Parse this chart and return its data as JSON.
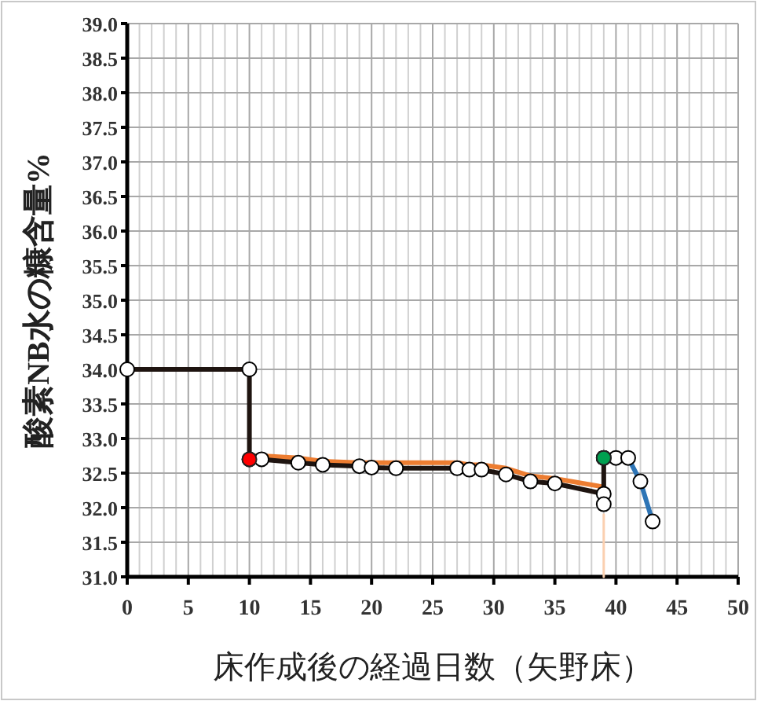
{
  "chart_data": {
    "type": "line",
    "xlabel": "床作成後の経過日数（矢野床）",
    "ylabel": "酸素NB水の糠含量%",
    "xlim": [
      0,
      50
    ],
    "ylim": [
      31,
      39
    ],
    "xticks": [
      0,
      {
        "value": 1,
        "label": null
      },
      {
        "value": 2,
        "label": null
      },
      {
        "value": 3,
        "label": null
      },
      {
        "value": 4,
        "label": null
      },
      5,
      {
        "value": 6,
        "label": null
      },
      {
        "value": 7,
        "label": null
      },
      {
        "value": 8,
        "label": null
      },
      {
        "value": 9,
        "label": null
      },
      10,
      {
        "value": 11,
        "label": null
      },
      {
        "value": 12,
        "label": null
      },
      {
        "value": 13,
        "label": null
      },
      {
        "value": 14,
        "label": null
      },
      15,
      {
        "value": 16,
        "label": null
      },
      {
        "value": 17,
        "label": null
      },
      {
        "value": 18,
        "label": null
      },
      {
        "value": 19,
        "label": null
      },
      20,
      {
        "value": 21,
        "label": null
      },
      {
        "value": 22,
        "label": null
      },
      {
        "value": 23,
        "label": null
      },
      {
        "value": 24,
        "label": null
      },
      25,
      {
        "value": 26,
        "label": null
      },
      {
        "value": 27,
        "label": null
      },
      {
        "value": 28,
        "label": null
      },
      {
        "value": 29,
        "label": null
      },
      30,
      {
        "value": 31,
        "label": null
      },
      {
        "value": 32,
        "label": null
      },
      {
        "value": 33,
        "label": null
      },
      {
        "value": 34,
        "label": null
      },
      35,
      {
        "value": 36,
        "label": null
      },
      {
        "value": 37,
        "label": null
      },
      {
        "value": 38,
        "label": null
      },
      {
        "value": 39,
        "label": null
      },
      40,
      {
        "value": 41,
        "label": null
      },
      {
        "value": 42,
        "label": null
      },
      {
        "value": 43,
        "label": null
      },
      {
        "value": 44,
        "label": null
      },
      45,
      {
        "value": 46,
        "label": null
      },
      {
        "value": 47,
        "label": null
      },
      {
        "value": 48,
        "label": null
      },
      {
        "value": 49,
        "label": null
      },
      50
    ],
    "yticks": [
      {
        "value": 31,
        "label": "31.0"
      },
      31.5,
      {
        "value": 32,
        "label": "32.0"
      },
      32.5,
      {
        "value": 33,
        "label": "33.0"
      },
      33.5,
      {
        "value": 34,
        "label": "34.0"
      },
      34.5,
      {
        "value": 35,
        "label": "35.0"
      },
      35.5,
      {
        "value": 36,
        "label": "36.0"
      },
      36.5,
      {
        "value": 37,
        "label": "37.0"
      },
      37.5,
      {
        "value": 38,
        "label": "38.0"
      },
      38.5,
      {
        "value": 39,
        "label": "39.0"
      }
    ],
    "grid": true,
    "marker": "circle",
    "series": [
      {
        "color": "#fbd0b0",
        "marker": "none",
        "x": [
          39,
          39
        ],
        "values": [
          31,
          31.9
        ]
      },
      {
        "color": "#ed7d31",
        "marker": "none",
        "x": [
          10,
          11,
          14,
          16,
          19,
          20,
          22,
          27,
          28,
          29,
          31,
          33,
          35,
          39
        ],
        "values": [
          32.75,
          32.75,
          32.72,
          32.67,
          32.65,
          32.65,
          32.65,
          32.65,
          32.62,
          32.62,
          32.57,
          32.46,
          32.42,
          32.3
        ]
      },
      {
        "color": "#2e75b6",
        "x": [
          39,
          40,
          41,
          42,
          43
        ],
        "values": [
          32.72,
          32.72,
          32.72,
          32.38,
          31.8
        ]
      },
      {
        "color": "#1e1410",
        "x": [
          0,
          10,
          10,
          11,
          14,
          16,
          19,
          20,
          22,
          27,
          28,
          29,
          31,
          33,
          35,
          39,
          39,
          39
        ],
        "values": [
          34,
          34,
          32.7,
          32.7,
          32.65,
          32.62,
          32.6,
          32.58,
          32.57,
          32.57,
          32.55,
          32.55,
          32.48,
          32.38,
          32.35,
          32.2,
          32.05,
          32.72
        ]
      },
      {
        "color": "#ff0000",
        "type": "scatter",
        "x": [
          10
        ],
        "values": [
          32.7
        ]
      },
      {
        "color": "#00a050",
        "type": "scatter",
        "x": [
          39
        ],
        "values": [
          32.72
        ]
      }
    ]
  }
}
